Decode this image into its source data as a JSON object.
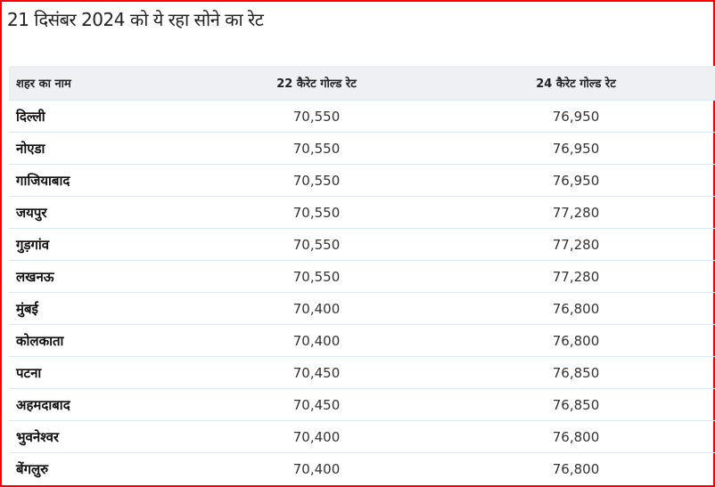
{
  "title": "21 दिसंबर 2024 को ये रहा सोने का रेट",
  "table": {
    "headers": [
      "शहर का नाम",
      "22 कैरेट गोल्ड रेट",
      "24 कैरेट गोल्ड रेट"
    ],
    "rows": [
      [
        "दिल्ली",
        "70,550",
        "76,950"
      ],
      [
        "नोएडा",
        "70,550",
        "76,950"
      ],
      [
        "गाजियाबाद",
        "70,550",
        "76,950"
      ],
      [
        "जयपुर",
        "70,550",
        "77,280"
      ],
      [
        "गुड़गांव",
        "70,550",
        "77,280"
      ],
      [
        "लखनऊ",
        "70,550",
        "77,280"
      ],
      [
        "मुंबई",
        "70,400",
        "76,800"
      ],
      [
        "कोलकाता",
        "70,400",
        "76,800"
      ],
      [
        "पटना",
        "70,450",
        "76,850"
      ],
      [
        "अहमदाबाद",
        "70,450",
        "76,850"
      ],
      [
        "भुवनेश्वर",
        "70,400",
        "76,800"
      ],
      [
        "बेंगलुरु",
        "70,400",
        "76,800"
      ]
    ]
  },
  "colors": {
    "border": "#ff0000",
    "header_bg": "#eff0f4",
    "row_divider": "#dbe8f7"
  }
}
